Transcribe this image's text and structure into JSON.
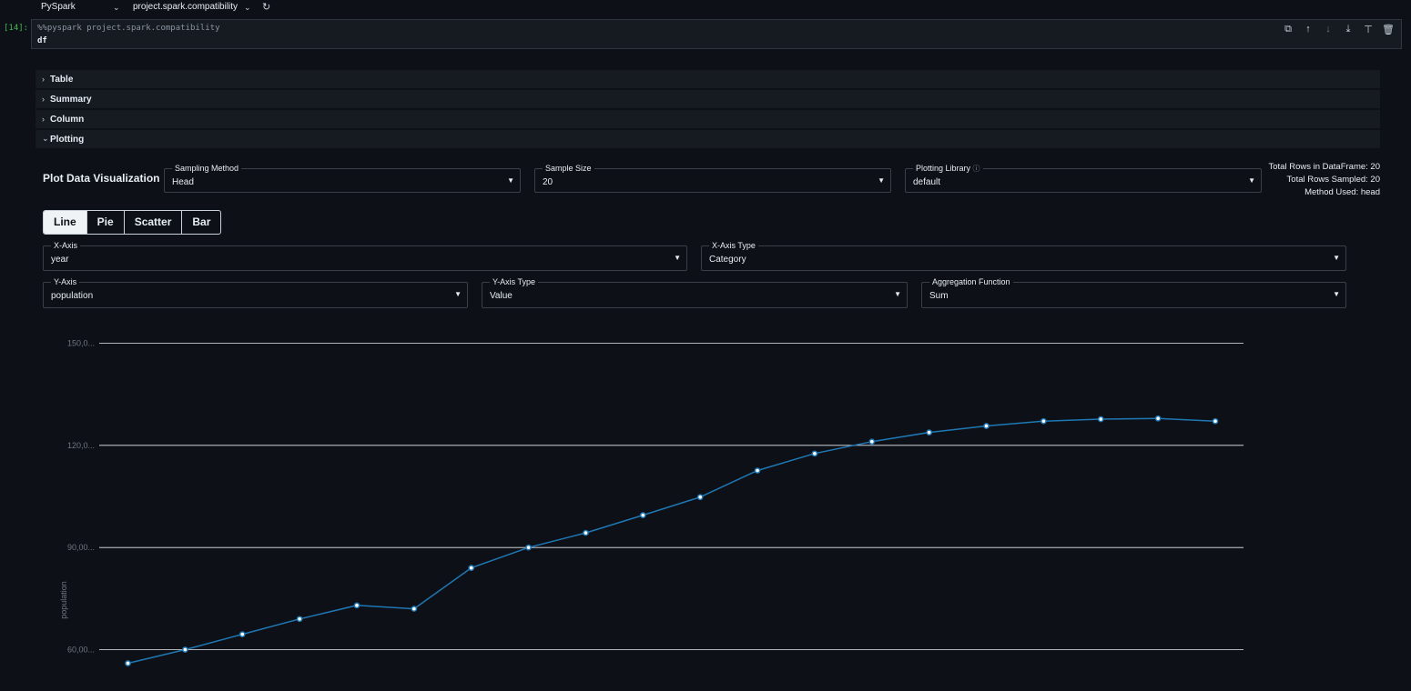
{
  "topbar": {
    "kernel": "PySpark",
    "project": "project.spark.compatibility"
  },
  "cell": {
    "execution_count": "[14]:",
    "code_line1": "%%pyspark project.spark.compatibility",
    "code_line2": "df",
    "tools": [
      "copy-icon",
      "move-up-icon",
      "move-down-icon",
      "insert-below-icon",
      "merge-icon",
      "delete-icon"
    ]
  },
  "sections": {
    "table": "Table",
    "summary": "Summary",
    "column": "Column",
    "plotting": "Plotting"
  },
  "plotting": {
    "title": "Plot Data Visualization",
    "sampling_method_label": "Sampling Method",
    "sampling_method_value": "Head",
    "sample_size_label": "Sample Size",
    "sample_size_value": "20",
    "plotting_library_label": "Plotting Library",
    "plotting_library_value": "default",
    "info_total_rows": "Total Rows in DataFrame: 20",
    "info_rows_sampled": "Total Rows Sampled: 20",
    "info_method": "Method Used: head",
    "tabs": [
      "Line",
      "Pie",
      "Scatter",
      "Bar"
    ],
    "active_tab": "Line",
    "x_axis_label": "X-Axis",
    "x_axis_value": "year",
    "x_axis_type_label": "X-Axis Type",
    "x_axis_type_value": "Category",
    "y_axis_label": "Y-Axis",
    "y_axis_value": "population",
    "y_axis_type_label": "Y-Axis Type",
    "y_axis_type_value": "Value",
    "agg_label": "Aggregation Function",
    "agg_value": "Sum"
  },
  "chart_data": {
    "type": "line",
    "ylabel": "population",
    "xlabel": "",
    "title": "",
    "ytick_labels": [
      "150,0...",
      "120,0...",
      "90,00...",
      "60,00..."
    ],
    "yticks": [
      150000,
      120000,
      90000,
      60000
    ],
    "ylim": [
      60000,
      150000
    ],
    "grid": true,
    "series": [
      {
        "color": "#1f77b4",
        "values": [
          56000,
          60000,
          64500,
          69000,
          73000,
          72000,
          84000,
          90000,
          94300,
          99500,
          104800,
          112600,
          117600,
          121100,
          123800,
          125700,
          127100,
          127700,
          127900,
          127100
        ]
      }
    ]
  },
  "colors": {
    "accent": "#1f77b4",
    "background": "#0d1117",
    "gridline": "#e6edf3"
  }
}
